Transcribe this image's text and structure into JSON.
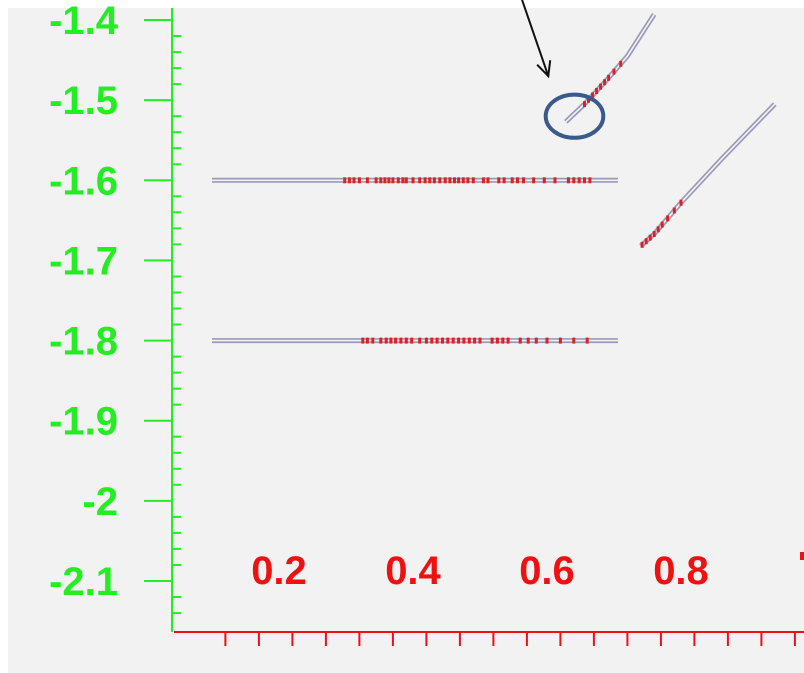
{
  "chart_data": {
    "type": "line",
    "title": "",
    "xlabel": "",
    "ylabel": "",
    "xlim": [
      0.1,
      1.0
    ],
    "ylim": [
      -2.15,
      -1.38
    ],
    "grid": false,
    "x_tick_labels": [
      "0.2",
      "0.4",
      "0.6",
      "0.8"
    ],
    "y_tick_labels": [
      "-1.4",
      "-1.5",
      "-1.6",
      "-1.7",
      "-1.8",
      "-1.9",
      "-2",
      "-2.1"
    ],
    "colors": {
      "y_axis": "#22ee22",
      "x_axis": "#ee1111",
      "line": "#9a9ab8",
      "markers": "#dd2222",
      "highlight_circle": "#3a5a8c",
      "annotation_arrow": "#111111",
      "background": "#f2f2f2"
    },
    "series": [
      {
        "x": [
          0.1,
          0.706
        ],
        "y": [
          -1.6,
          -1.6
        ],
        "markers_x": [
          0.298,
          0.305,
          0.312,
          0.32,
          0.332,
          0.345,
          0.352,
          0.358,
          0.364,
          0.37,
          0.378,
          0.385,
          0.39,
          0.4,
          0.41,
          0.418,
          0.425,
          0.432,
          0.44,
          0.448,
          0.455,
          0.462,
          0.468,
          0.475,
          0.482,
          0.49,
          0.505,
          0.512,
          0.528,
          0.536,
          0.548,
          0.556,
          0.565,
          0.58,
          0.596,
          0.612,
          0.632,
          0.64,
          0.648,
          0.656,
          0.664
        ],
        "markers_y": -1.6
      },
      {
        "x": [
          0.1,
          0.706
        ],
        "y": [
          -1.8,
          -1.8
        ],
        "markers_x": [
          0.325,
          0.332,
          0.34,
          0.352,
          0.36,
          0.367,
          0.374,
          0.382,
          0.39,
          0.398,
          0.41,
          0.42,
          0.428,
          0.436,
          0.444,
          0.452,
          0.46,
          0.468,
          0.476,
          0.484,
          0.492,
          0.5,
          0.518,
          0.526,
          0.534,
          0.542,
          0.56,
          0.572,
          0.584,
          0.6,
          0.62,
          0.64,
          0.66
        ],
        "markers_y": -1.8
      },
      {
        "x": [
          0.628,
          0.656,
          0.69,
          0.72,
          0.76
        ],
        "y": [
          -1.527,
          -1.505,
          -1.474,
          -1.445,
          -1.393
        ],
        "markers_x": [
          0.656,
          0.662,
          0.668,
          0.674,
          0.68,
          0.686,
          0.692,
          0.7,
          0.71
        ],
        "markers_slope": true
      },
      {
        "x": [
          0.74,
          0.76,
          0.8,
          0.86,
          0.94
        ],
        "y": [
          -1.682,
          -1.667,
          -1.628,
          -1.574,
          -1.505
        ],
        "markers_x": [
          0.742,
          0.748,
          0.754,
          0.76,
          0.766,
          0.772,
          0.78,
          0.79,
          0.8
        ],
        "markers_slope": true
      }
    ],
    "annotations": [
      {
        "type": "arrow",
        "from": [
          0.534,
          -1.305
        ],
        "to": [
          0.602,
          -1.47
        ]
      },
      {
        "type": "circle",
        "center": [
          0.641,
          -1.52
        ],
        "radius_x": 0.043,
        "radius_y": 0.027
      }
    ]
  }
}
